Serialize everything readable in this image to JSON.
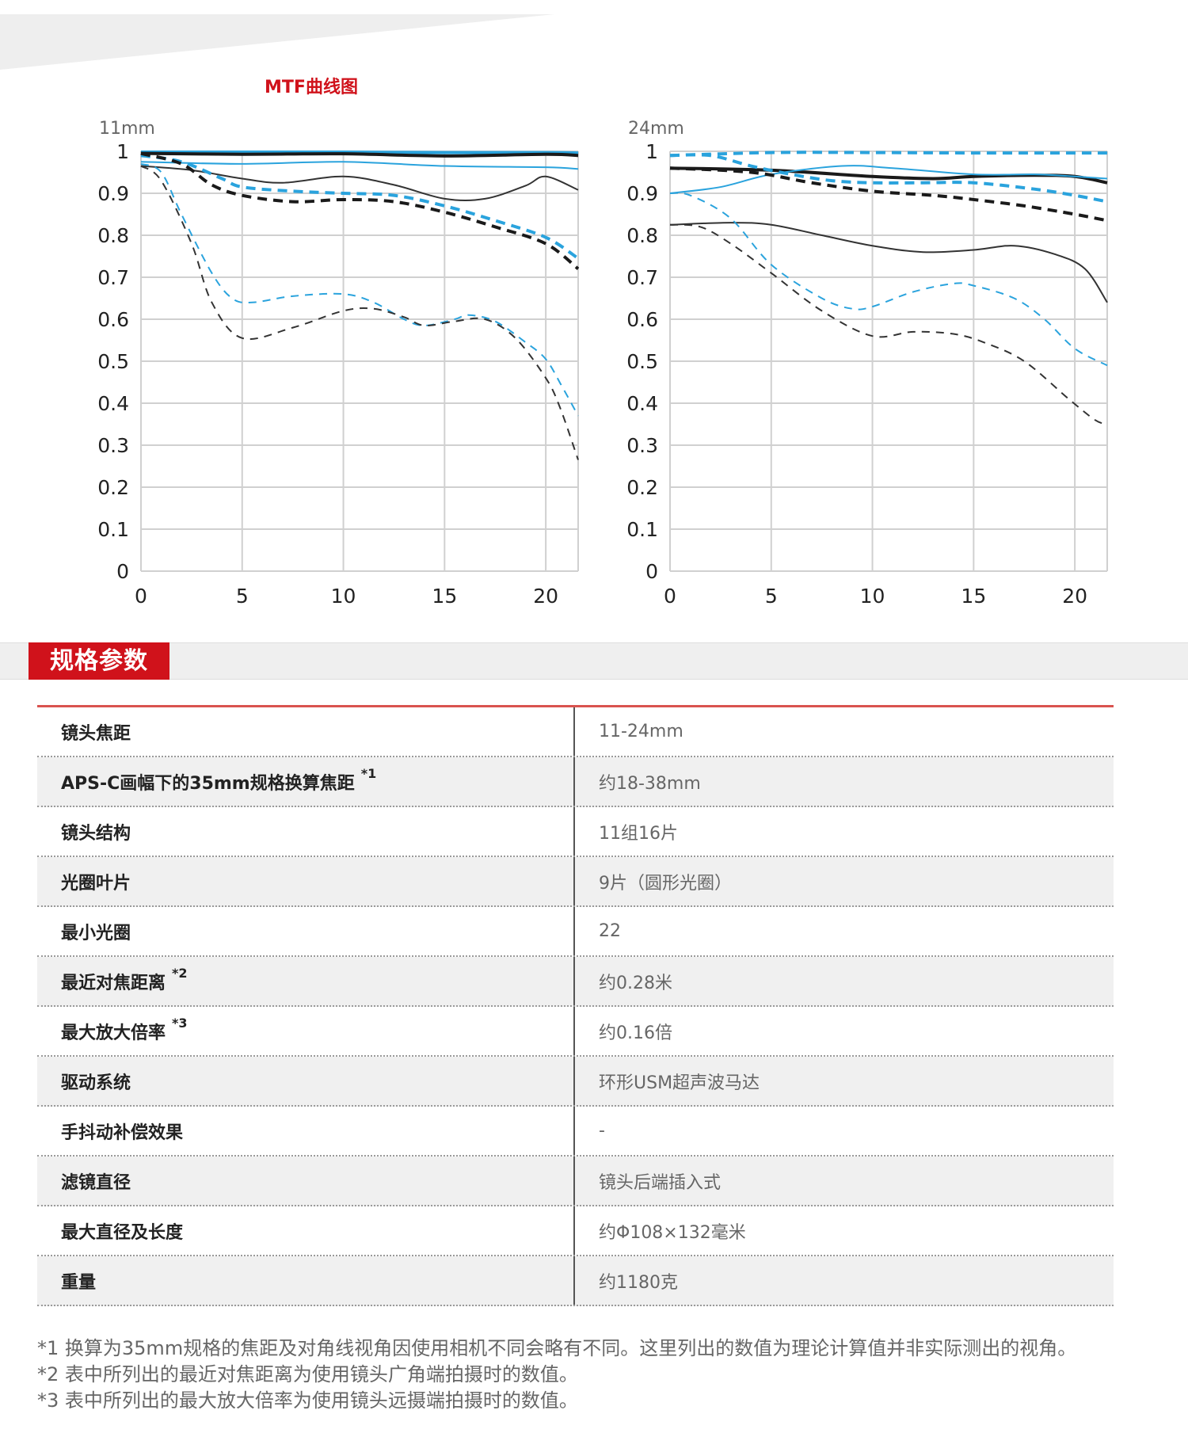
{
  "header": {
    "mtf_title": "MTF曲线图"
  },
  "chart_data": [
    {
      "type": "line",
      "title": "11mm",
      "xlim": [
        0,
        21.6
      ],
      "ylim": [
        0,
        1
      ],
      "xticks": [
        0,
        5,
        10,
        15,
        20
      ],
      "yticks": [
        0,
        0.1,
        0.2,
        0.3,
        0.4,
        0.5,
        0.6,
        0.7,
        0.8,
        0.9,
        1
      ],
      "ytick_labels": [
        "0",
        "0.1",
        "0.2",
        "0.3",
        "0.4",
        "0.5",
        "0.6",
        "0.7",
        "0.8",
        "0.9",
        "1"
      ],
      "grid": true,
      "series": [
        {
          "color": "#2aa3dd",
          "weight": "thick",
          "dashed": false,
          "points": [
            [
              0,
              0.998
            ],
            [
              5,
              0.998
            ],
            [
              10,
              0.998
            ],
            [
              15,
              0.997
            ],
            [
              20,
              0.997
            ],
            [
              21.6,
              0.996
            ]
          ]
        },
        {
          "color": "#1a1a1a",
          "weight": "thick",
          "dashed": false,
          "points": [
            [
              0,
              0.995
            ],
            [
              5,
              0.993
            ],
            [
              10,
              0.994
            ],
            [
              15,
              0.989
            ],
            [
              20,
              0.993
            ],
            [
              21.6,
              0.99
            ]
          ]
        },
        {
          "color": "#2aa3dd",
          "weight": "thin",
          "dashed": false,
          "points": [
            [
              0,
              0.975
            ],
            [
              5,
              0.97
            ],
            [
              10,
              0.975
            ],
            [
              15,
              0.965
            ],
            [
              20,
              0.962
            ],
            [
              21.6,
              0.958
            ]
          ]
        },
        {
          "color": "#333333",
          "weight": "thin",
          "dashed": false,
          "points": [
            [
              0,
              0.965
            ],
            [
              2.5,
              0.955
            ],
            [
              5,
              0.935
            ],
            [
              7,
              0.925
            ],
            [
              10,
              0.94
            ],
            [
              12.5,
              0.92
            ],
            [
              15,
              0.887
            ],
            [
              17,
              0.887
            ],
            [
              19,
              0.918
            ],
            [
              20,
              0.94
            ],
            [
              21.6,
              0.908
            ]
          ]
        },
        {
          "color": "#2aa3dd",
          "weight": "thick",
          "dashed": true,
          "points": [
            [
              0,
              0.99
            ],
            [
              2,
              0.975
            ],
            [
              4,
              0.935
            ],
            [
              5,
              0.915
            ],
            [
              7.5,
              0.905
            ],
            [
              10,
              0.9
            ],
            [
              12.5,
              0.895
            ],
            [
              15,
              0.87
            ],
            [
              17.5,
              0.835
            ],
            [
              20,
              0.795
            ],
            [
              21.6,
              0.745
            ]
          ]
        },
        {
          "color": "#1a1a1a",
          "weight": "thick",
          "dashed": true,
          "points": [
            [
              0,
              0.995
            ],
            [
              2,
              0.97
            ],
            [
              3.5,
              0.92
            ],
            [
              5,
              0.895
            ],
            [
              7.5,
              0.88
            ],
            [
              10,
              0.885
            ],
            [
              12.5,
              0.88
            ],
            [
              15,
              0.855
            ],
            [
              17.5,
              0.82
            ],
            [
              20,
              0.78
            ],
            [
              21.6,
              0.72
            ]
          ]
        },
        {
          "color": "#2aa3dd",
          "weight": "thin",
          "dashed": true,
          "points": [
            [
              0,
              0.97
            ],
            [
              1,
              0.95
            ],
            [
              2,
              0.85
            ],
            [
              3.5,
              0.71
            ],
            [
              4.5,
              0.65
            ],
            [
              5.5,
              0.64
            ],
            [
              7.5,
              0.655
            ],
            [
              10,
              0.66
            ],
            [
              11.5,
              0.64
            ],
            [
              13,
              0.6
            ],
            [
              14,
              0.585
            ],
            [
              15.5,
              0.6
            ],
            [
              16.2,
              0.61
            ],
            [
              17.5,
              0.595
            ],
            [
              19,
              0.545
            ],
            [
              20,
              0.505
            ],
            [
              20.8,
              0.44
            ],
            [
              21.6,
              0.37
            ]
          ]
        },
        {
          "color": "#333333",
          "weight": "thin",
          "dashed": true,
          "points": [
            [
              0,
              0.965
            ],
            [
              1,
              0.93
            ],
            [
              2.5,
              0.78
            ],
            [
              3.5,
              0.64
            ],
            [
              5,
              0.555
            ],
            [
              7.5,
              0.58
            ],
            [
              10,
              0.62
            ],
            [
              11.5,
              0.625
            ],
            [
              13,
              0.605
            ],
            [
              14,
              0.585
            ],
            [
              15.5,
              0.595
            ],
            [
              17,
              0.6
            ],
            [
              18.5,
              0.555
            ],
            [
              20,
              0.46
            ],
            [
              20.7,
              0.39
            ],
            [
              21.6,
              0.265
            ]
          ]
        }
      ]
    },
    {
      "type": "line",
      "title": "24mm",
      "xlim": [
        0,
        21.6
      ],
      "ylim": [
        0,
        1
      ],
      "xticks": [
        0,
        5,
        10,
        15,
        20
      ],
      "yticks": [
        0,
        0.1,
        0.2,
        0.3,
        0.4,
        0.5,
        0.6,
        0.7,
        0.8,
        0.9,
        1
      ],
      "ytick_labels": [
        "0",
        "0.1",
        "0.2",
        "0.3",
        "0.4",
        "0.5",
        "0.6",
        "0.7",
        "0.8",
        "0.9",
        "1"
      ],
      "grid": true,
      "series": [
        {
          "color": "#2aa3dd",
          "weight": "thick",
          "dashed": true,
          "points": [
            [
              0,
              0.99
            ],
            [
              5,
              0.997
            ],
            [
              10,
              0.997
            ],
            [
              15,
              0.996
            ],
            [
              20,
              0.996
            ],
            [
              21.6,
              0.996
            ]
          ]
        },
        {
          "color": "#1a1a1a",
          "weight": "thick",
          "dashed": false,
          "points": [
            [
              0,
              0.96
            ],
            [
              5,
              0.955
            ],
            [
              10,
              0.94
            ],
            [
              13,
              0.935
            ],
            [
              15,
              0.94
            ],
            [
              18,
              0.943
            ],
            [
              20,
              0.94
            ],
            [
              21.6,
              0.925
            ]
          ]
        },
        {
          "color": "#2aa3dd",
          "weight": "thin",
          "dashed": false,
          "points": [
            [
              0,
              0.9
            ],
            [
              2.5,
              0.915
            ],
            [
              5,
              0.945
            ],
            [
              8.5,
              0.965
            ],
            [
              11,
              0.96
            ],
            [
              15,
              0.945
            ],
            [
              18,
              0.945
            ],
            [
              20,
              0.94
            ],
            [
              21.6,
              0.935
            ]
          ]
        },
        {
          "color": "#2aa3dd",
          "weight": "thick",
          "dashed": true,
          "points": [
            [
              0,
              0.99
            ],
            [
              2,
              0.99
            ],
            [
              4,
              0.965
            ],
            [
              6,
              0.945
            ],
            [
              8,
              0.93
            ],
            [
              10,
              0.925
            ],
            [
              12.5,
              0.925
            ],
            [
              15,
              0.925
            ],
            [
              18,
              0.91
            ],
            [
              20,
              0.895
            ],
            [
              21.6,
              0.88
            ]
          ]
        },
        {
          "color": "#1a1a1a",
          "weight": "thick",
          "dashed": true,
          "points": [
            [
              0,
              0.96
            ],
            [
              4,
              0.95
            ],
            [
              7,
              0.925
            ],
            [
              10,
              0.905
            ],
            [
              13,
              0.895
            ],
            [
              15,
              0.885
            ],
            [
              17.5,
              0.87
            ],
            [
              20,
              0.85
            ],
            [
              21.6,
              0.835
            ]
          ]
        },
        {
          "color": "#333333",
          "weight": "thin",
          "dashed": false,
          "points": [
            [
              0,
              0.825
            ],
            [
              3,
              0.83
            ],
            [
              5,
              0.825
            ],
            [
              7.5,
              0.8
            ],
            [
              10,
              0.775
            ],
            [
              12.5,
              0.76
            ],
            [
              15,
              0.765
            ],
            [
              17,
              0.775
            ],
            [
              19,
              0.755
            ],
            [
              20.5,
              0.72
            ],
            [
              21.6,
              0.64
            ]
          ]
        },
        {
          "color": "#2aa3dd",
          "weight": "thin",
          "dashed": true,
          "points": [
            [
              0,
              0.9
            ],
            [
              1,
              0.895
            ],
            [
              3,
              0.84
            ],
            [
              5,
              0.73
            ],
            [
              7.5,
              0.65
            ],
            [
              9,
              0.625
            ],
            [
              10,
              0.63
            ],
            [
              12,
              0.665
            ],
            [
              14,
              0.685
            ],
            [
              15,
              0.68
            ],
            [
              17,
              0.65
            ],
            [
              18.5,
              0.6
            ],
            [
              20,
              0.53
            ],
            [
              21.6,
              0.49
            ]
          ]
        },
        {
          "color": "#333333",
          "weight": "thin",
          "dashed": true,
          "points": [
            [
              0,
              0.825
            ],
            [
              1.5,
              0.82
            ],
            [
              3,
              0.78
            ],
            [
              5,
              0.71
            ],
            [
              7.5,
              0.62
            ],
            [
              10,
              0.56
            ],
            [
              12,
              0.57
            ],
            [
              14,
              0.565
            ],
            [
              15.5,
              0.545
            ],
            [
              17.5,
              0.5
            ],
            [
              19.7,
              0.41
            ],
            [
              21,
              0.36
            ],
            [
              21.6,
              0.35
            ]
          ]
        }
      ]
    }
  ],
  "section": {
    "title": "规格参数"
  },
  "specs": [
    {
      "label": "镜头焦距",
      "sup": "",
      "value": "11-24mm"
    },
    {
      "label": "APS-C画幅下的35mm规格换算焦距",
      "sup": "*1",
      "value": "约18-38mm"
    },
    {
      "label": "镜头结构",
      "sup": "",
      "value": "11组16片"
    },
    {
      "label": "光圈叶片",
      "sup": "",
      "value": "9片（圆形光圈）"
    },
    {
      "label": "最小光圈",
      "sup": "",
      "value": "22"
    },
    {
      "label": "最近对焦距离",
      "sup": "*2",
      "value": "约0.28米"
    },
    {
      "label": "最大放大倍率",
      "sup": "*3",
      "value": "约0.16倍"
    },
    {
      "label": "驱动系统",
      "sup": "",
      "value": "环形USM超声波马达"
    },
    {
      "label": "手抖动补偿效果",
      "sup": "",
      "value": "-"
    },
    {
      "label": "滤镜直径",
      "sup": "",
      "value": "镜头后端插入式"
    },
    {
      "label": "最大直径及长度",
      "sup": "",
      "value": "约Φ108×132毫米"
    },
    {
      "label": "重量",
      "sup": "",
      "value": "约1180克"
    }
  ],
  "footnotes": [
    "*1 换算为35mm规格的焦距及对角线视角因使用相机不同会略有不同。这里列出的数值为理论计算值并非实际测出的视角。",
    "*2 表中所列出的最近对焦距离为使用镜头广角端拍摄时的数值。",
    "*3 表中所列出的最大放大倍率为使用镜头远摄端拍摄时的数值。"
  ]
}
